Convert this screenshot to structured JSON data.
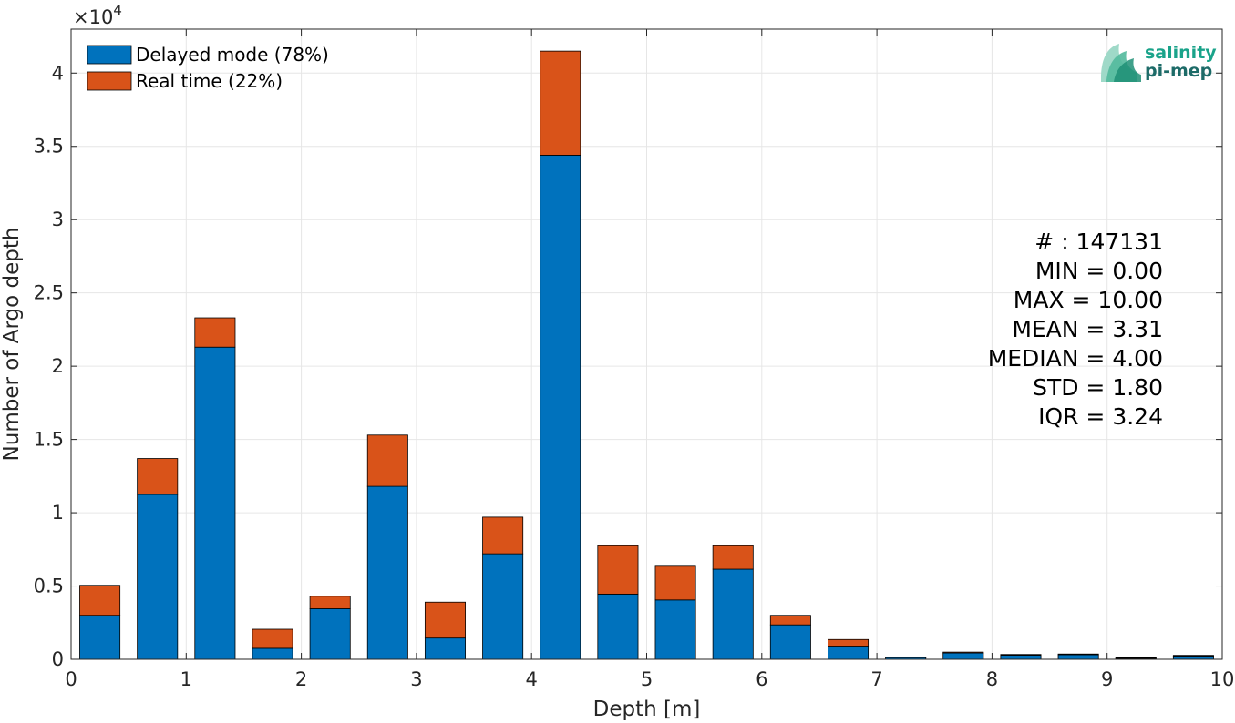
{
  "chart_data": {
    "type": "bar",
    "stacked": true,
    "title": "",
    "xlabel": "Depth [m]",
    "ylabel": "Number of Argo depth",
    "xlim": [
      0,
      10
    ],
    "ylim": [
      0,
      43000
    ],
    "y_exponent_label": "×10",
    "y_exponent_power": "4",
    "x_ticks": [
      {
        "value": 0,
        "label": "0"
      },
      {
        "value": 1,
        "label": "1"
      },
      {
        "value": 2,
        "label": "2"
      },
      {
        "value": 3,
        "label": "3"
      },
      {
        "value": 4,
        "label": "4"
      },
      {
        "value": 5,
        "label": "5"
      },
      {
        "value": 6,
        "label": "6"
      },
      {
        "value": 7,
        "label": "7"
      },
      {
        "value": 8,
        "label": "8"
      },
      {
        "value": 9,
        "label": "9"
      },
      {
        "value": 10,
        "label": "10"
      }
    ],
    "y_ticks": [
      {
        "value": 0,
        "label": "0"
      },
      {
        "value": 5000,
        "label": "0.5"
      },
      {
        "value": 10000,
        "label": "1"
      },
      {
        "value": 15000,
        "label": "1.5"
      },
      {
        "value": 20000,
        "label": "2"
      },
      {
        "value": 25000,
        "label": "2.5"
      },
      {
        "value": 30000,
        "label": "3"
      },
      {
        "value": 35000,
        "label": "3.5"
      },
      {
        "value": 40000,
        "label": "4"
      }
    ],
    "grid": true,
    "bin_width": 0.5,
    "bar_width": 0.35,
    "x": [
      0.25,
      0.75,
      1.25,
      1.75,
      2.25,
      2.75,
      3.25,
      3.75,
      4.25,
      4.75,
      5.25,
      5.75,
      6.25,
      6.75,
      7.25,
      7.75,
      8.25,
      8.75,
      9.25,
      9.75
    ],
    "series": [
      {
        "name": "Delayed mode (78%)",
        "color": "#0072BD",
        "values": [
          3000,
          11250,
          21300,
          750,
          3450,
          11800,
          1450,
          7200,
          34400,
          4450,
          4050,
          6150,
          2350,
          900,
          120,
          430,
          280,
          320,
          70,
          220
        ]
      },
      {
        "name": "Real time (22%)",
        "color": "#D95319",
        "values": [
          2050,
          2450,
          2000,
          1300,
          850,
          3500,
          2450,
          2500,
          7100,
          3300,
          2300,
          1600,
          650,
          450,
          40,
          60,
          50,
          40,
          30,
          50
        ]
      }
    ],
    "legend_position": "top-left",
    "stats": [
      "# : 147131",
      "MIN = 0.00",
      "MAX =  10.00",
      "MEAN = 3.31",
      "MEDIAN = 4.00",
      "STD = 1.80",
      "IQR = 3.24"
    ]
  },
  "logo": {
    "line1": "salinity",
    "line2": "pi-mep",
    "color1": "#1aa38a",
    "color2": "#1d6b68"
  }
}
